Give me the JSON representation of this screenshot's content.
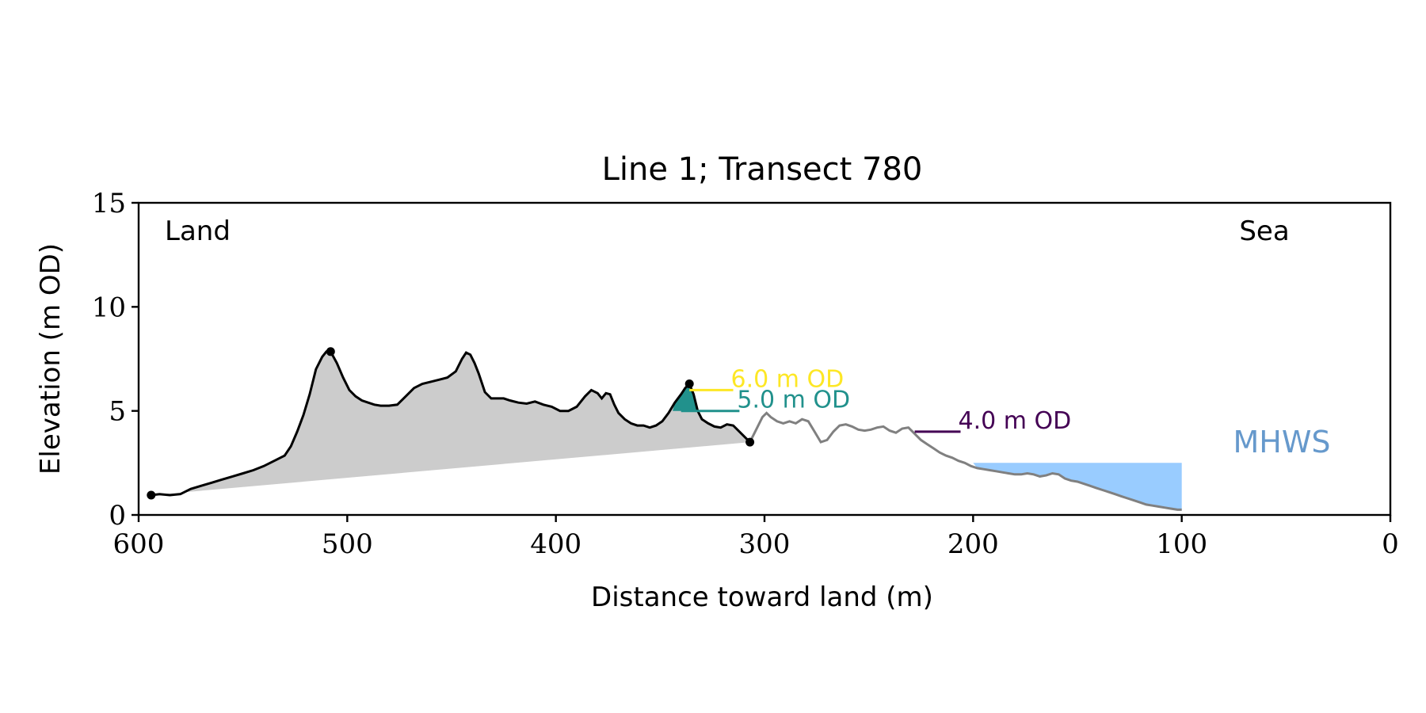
{
  "chart_data": {
    "type": "line",
    "title": "Line 1; Transect 780",
    "xlabel": "Distance toward land (m)",
    "ylabel": "Elevation (m OD)",
    "xlim": [
      600,
      0
    ],
    "ylim": [
      0,
      15
    ],
    "x_ticks": [
      "600",
      "500",
      "400",
      "300",
      "200",
      "100",
      "0"
    ],
    "y_ticks": [
      "0",
      "5",
      "10",
      "15"
    ],
    "x_tick_values": [
      600,
      500,
      400,
      300,
      200,
      100,
      0
    ],
    "y_tick_values": [
      0,
      5,
      10,
      15
    ],
    "grid": false,
    "annotations": {
      "land": "Land",
      "sea": "Sea",
      "mhws": "MHWS"
    },
    "colors": {
      "profile_land": "#000000",
      "profile_sea": "#808080",
      "fill_area": "#cccccc",
      "mhws_fill": "#99ccff",
      "mhws_text": "#6699cc",
      "od6": "#fde725",
      "od5": "#21918c",
      "od4": "#440154"
    },
    "mhws_level": 2.5,
    "mhws_x_range": [
      200,
      100
    ],
    "contour_levels": [
      {
        "label": "6.0 m OD",
        "level": 6.0,
        "x_start": 336,
        "x_end": 315
      },
      {
        "label": "5.0 m OD",
        "level": 5.0,
        "x_start": 340,
        "x_end": 312
      },
      {
        "label": "4.0 m OD",
        "level": 4.0,
        "x_start": 228,
        "x_end": 206
      }
    ],
    "key_points": [
      {
        "x": 594,
        "y": 0.95
      },
      {
        "x": 508,
        "y": 7.85
      },
      {
        "x": 336,
        "y": 6.3
      },
      {
        "x": 307,
        "y": 3.5
      }
    ],
    "profile_land": {
      "x": [
        594,
        590,
        585,
        580,
        575,
        570,
        565,
        560,
        555,
        550,
        545,
        540,
        535,
        530,
        527,
        524,
        521,
        518,
        515,
        512,
        510,
        508,
        505,
        502,
        499,
        496,
        493,
        490,
        487,
        484,
        480,
        476,
        472,
        468,
        464,
        460,
        456,
        452,
        448,
        445,
        443,
        441,
        439,
        437,
        434,
        431,
        428,
        425,
        422,
        418,
        414,
        410,
        406,
        402,
        398,
        394,
        390,
        386,
        383,
        380,
        378,
        376,
        374,
        372,
        370,
        367,
        364,
        361,
        358,
        355,
        352,
        349,
        346,
        343,
        340,
        338,
        336,
        334,
        332,
        330,
        327,
        324,
        321,
        318,
        315,
        312,
        309,
        307
      ],
      "y": [
        0.95,
        1.0,
        0.95,
        1.0,
        1.25,
        1.4,
        1.55,
        1.7,
        1.85,
        2.0,
        2.15,
        2.35,
        2.6,
        2.85,
        3.3,
        4.0,
        4.8,
        5.8,
        7.0,
        7.6,
        7.85,
        7.85,
        7.3,
        6.6,
        6.0,
        5.7,
        5.5,
        5.4,
        5.3,
        5.25,
        5.25,
        5.3,
        5.7,
        6.1,
        6.3,
        6.4,
        6.5,
        6.6,
        6.9,
        7.5,
        7.8,
        7.7,
        7.3,
        6.8,
        5.9,
        5.6,
        5.6,
        5.6,
        5.5,
        5.4,
        5.35,
        5.45,
        5.3,
        5.2,
        5.0,
        5.0,
        5.2,
        5.7,
        6.0,
        5.85,
        5.6,
        5.85,
        5.8,
        5.3,
        4.9,
        4.6,
        4.4,
        4.3,
        4.3,
        4.2,
        4.3,
        4.5,
        4.9,
        5.4,
        5.8,
        6.1,
        6.3,
        5.8,
        5.0,
        4.6,
        4.4,
        4.25,
        4.2,
        4.35,
        4.3,
        4.0,
        3.7,
        3.5
      ]
    },
    "profile_sea": {
      "x": [
        307,
        304,
        301,
        299,
        297,
        294,
        291,
        288,
        285,
        282,
        279,
        276,
        273,
        270,
        267,
        264,
        261,
        258,
        255,
        252,
        249,
        246,
        243,
        240,
        237,
        234,
        231,
        228,
        225,
        222,
        219,
        216,
        213,
        210,
        207,
        204,
        201,
        198,
        195,
        192,
        189,
        186,
        183,
        180,
        177,
        174,
        171,
        168,
        165,
        162,
        159,
        156,
        153,
        150,
        147,
        144,
        141,
        138,
        135,
        132,
        129,
        126,
        123,
        120,
        117,
        114,
        111,
        108,
        105,
        102,
        100
      ],
      "y": [
        3.5,
        4.1,
        4.7,
        4.9,
        4.7,
        4.5,
        4.4,
        4.5,
        4.4,
        4.6,
        4.5,
        4.0,
        3.5,
        3.6,
        4.0,
        4.3,
        4.35,
        4.25,
        4.1,
        4.05,
        4.1,
        4.2,
        4.25,
        4.05,
        3.95,
        4.15,
        4.2,
        3.9,
        3.6,
        3.4,
        3.2,
        3.0,
        2.85,
        2.75,
        2.6,
        2.5,
        2.35,
        2.25,
        2.2,
        2.15,
        2.1,
        2.05,
        2.0,
        1.95,
        1.95,
        2.0,
        1.95,
        1.85,
        1.9,
        2.0,
        1.95,
        1.75,
        1.65,
        1.6,
        1.5,
        1.4,
        1.3,
        1.2,
        1.1,
        1.0,
        0.9,
        0.8,
        0.7,
        0.6,
        0.5,
        0.45,
        0.4,
        0.35,
        0.3,
        0.25,
        0.25
      ]
    }
  }
}
